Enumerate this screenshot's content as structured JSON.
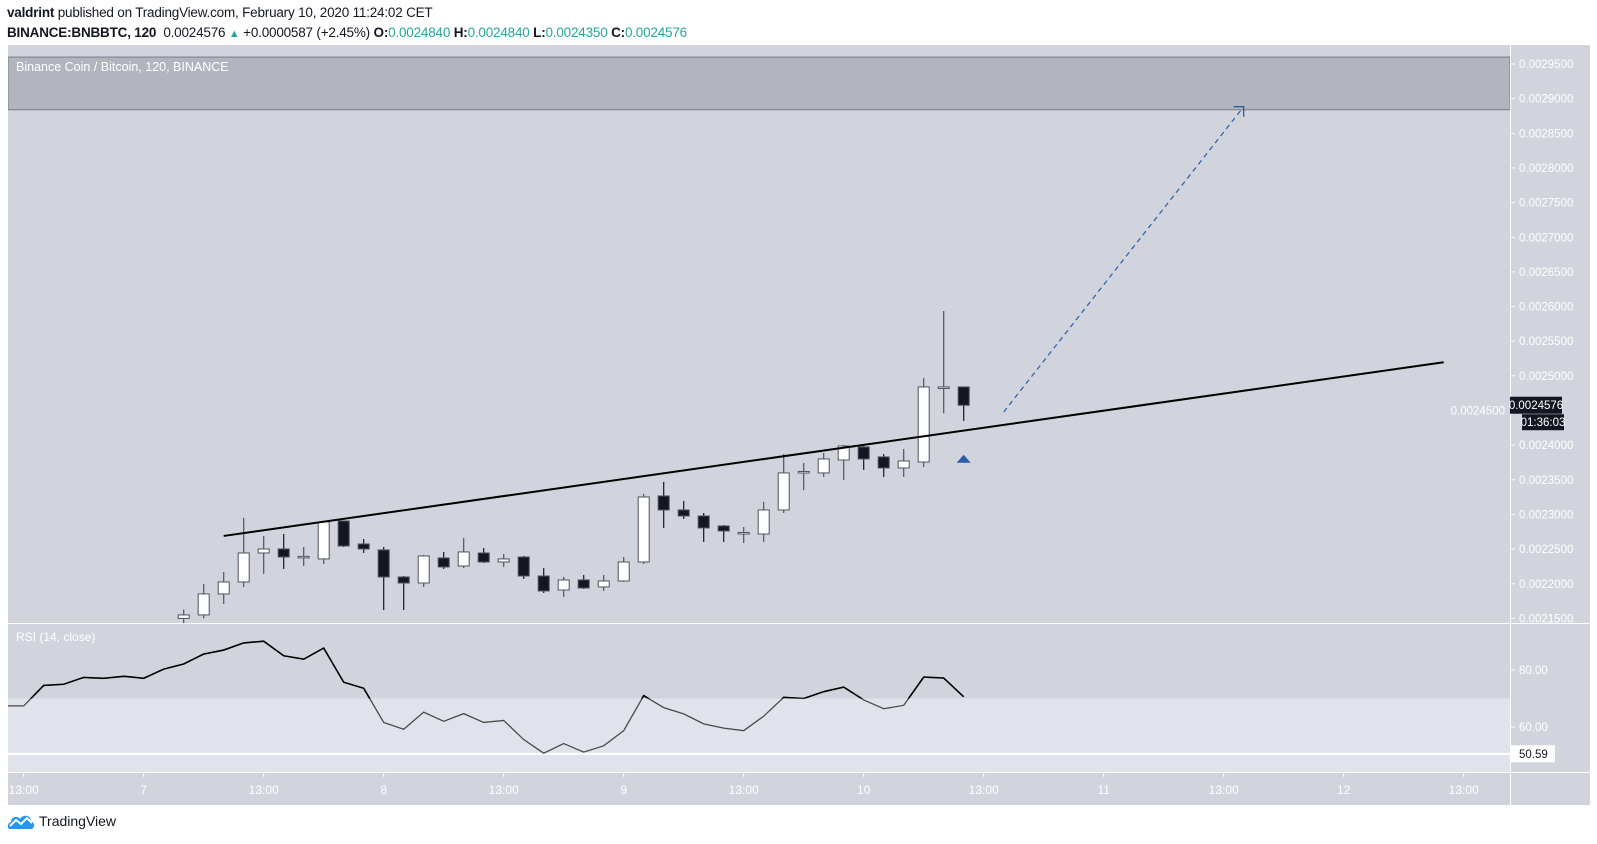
{
  "header": {
    "author": "valdrint",
    "published_text": "published on TradingView.com, February 10, 2020 11:24:02 CET",
    "symbol": "BINANCE:BNBBTC, 120",
    "last_price": "0.0024576",
    "change": "+0.0000587 (+2.45%)",
    "open_label": "O:",
    "open": "0.0024840",
    "high_label": "H:",
    "high": "0.0024840",
    "low_label": "L:",
    "low": "0.0024350",
    "close_label": "C:",
    "close": "0.0024576"
  },
  "colors": {
    "pane_bg": "#d1d4dc",
    "rsi_band": "#e0e3eb",
    "resistance_box": "#b2b5be",
    "up_candle": "#ffffff",
    "down_candle": "#131722",
    "candle_border": "#50535e",
    "value_teal": "#26a69a",
    "arrow_blue": "#2a5ca8",
    "axis_text": "#ffffff"
  },
  "chart_data": [
    {
      "type": "candlestick",
      "title": "Binance Coin / Bitcoin, 120, BINANCE",
      "ylim": [
        0.00215,
        0.00297
      ],
      "y_ticks": [
        "0.0029500",
        "0.0029000",
        "0.0028500",
        "0.0028000",
        "0.0027500",
        "0.0027000",
        "0.0026500",
        "0.0026000",
        "0.0025500",
        "0.0025000",
        "0.0024500",
        "0.0024000",
        "0.0023500",
        "0.0023000",
        "0.0022500",
        "0.0022000",
        "0.0021500"
      ],
      "x_ticks": [
        {
          "label": "13:00",
          "t": "2020-02-06 12:00"
        },
        {
          "label": "7",
          "t": "2020-02-07 00:00"
        },
        {
          "label": "13:00",
          "t": "2020-02-07 12:00"
        },
        {
          "label": "8",
          "t": "2020-02-08 00:00"
        },
        {
          "label": "13:00",
          "t": "2020-02-08 12:00"
        },
        {
          "label": "9",
          "t": "2020-02-09 00:00"
        },
        {
          "label": "13:00",
          "t": "2020-02-09 12:00"
        },
        {
          "label": "10",
          "t": "2020-02-10 00:00"
        },
        {
          "label": "13:00",
          "t": "2020-02-10 12:00"
        },
        {
          "label": "11",
          "t": "2020-02-11 00:00"
        },
        {
          "label": "13:00",
          "t": "2020-02-11 12:00"
        },
        {
          "label": "12",
          "t": "2020-02-12 00:00"
        },
        {
          "label": "13:00",
          "t": "2020-02-12 12:00"
        }
      ],
      "candle_fields": [
        "time",
        "open",
        "high",
        "low",
        "close"
      ],
      "candles": [
        [
          "2020-02-07 04:00",
          0.00215,
          0.002163,
          0.00214,
          0.002155
        ],
        [
          "2020-02-07 06:00",
          0.002155,
          0.0021997,
          0.00215,
          0.0021853
        ],
        [
          "2020-02-07 08:00",
          0.0021853,
          0.002217,
          0.0021708,
          0.0022026
        ],
        [
          "2020-02-07 10:00",
          0.0022026,
          0.0022949,
          0.0021954,
          0.0022444
        ],
        [
          "2020-02-07 12:00",
          0.0022444,
          0.002269,
          0.0022141,
          0.0022502
        ],
        [
          "2020-02-07 14:00",
          0.0022502,
          0.0022718,
          0.0022213,
          0.0022386
        ],
        [
          "2020-02-07 16:00",
          0.0022386,
          0.0022531,
          0.0022256,
          0.0022395
        ],
        [
          "2020-02-07 18:00",
          0.0022358,
          0.0022906,
          0.0022285,
          0.0022892
        ],
        [
          "2020-02-07 20:00",
          0.0022906,
          0.002291,
          0.002253,
          0.0022545
        ],
        [
          "2020-02-07 22:00",
          0.0022574,
          0.0022646,
          0.0022444,
          0.0022502
        ],
        [
          "2020-02-08 00:00",
          0.0022488,
          0.0022531,
          0.0021621,
          0.0022098
        ],
        [
          "2020-02-08 02:00",
          0.0022098,
          0.0022112,
          0.0021621,
          0.0022011
        ],
        [
          "2020-02-08 04:00",
          0.0022011,
          0.0022415,
          0.0021954,
          0.0022401
        ],
        [
          "2020-02-08 06:00",
          0.0022372,
          0.0022459,
          0.0022213,
          0.0022242
        ],
        [
          "2020-02-08 08:00",
          0.0022256,
          0.0022661,
          0.0022227,
          0.0022459
        ],
        [
          "2020-02-08 10:00",
          0.0022444,
          0.0022516,
          0.00223,
          0.0022314
        ],
        [
          "2020-02-08 12:00",
          0.0022314,
          0.002243,
          0.0022242,
          0.0022358
        ],
        [
          "2020-02-08 14:00",
          0.0022386,
          0.0022401,
          0.0022069,
          0.0022112
        ],
        [
          "2020-02-08 16:00",
          0.0022112,
          0.0022227,
          0.0021867,
          0.0021896
        ],
        [
          "2020-02-08 18:00",
          0.002191,
          0.0022098,
          0.0021809,
          0.0022055
        ],
        [
          "2020-02-08 20:00",
          0.0022055,
          0.0022127,
          0.0021925,
          0.0021939
        ],
        [
          "2020-02-08 22:00",
          0.0021954,
          0.0022127,
          0.0021896,
          0.002204
        ],
        [
          "2020-02-09 00:00",
          0.002204,
          0.0022386,
          0.0022026,
          0.0022314
        ],
        [
          "2020-02-09 02:00",
          0.0022314,
          0.0023296,
          0.0022285,
          0.0023252
        ],
        [
          "2020-02-09 04:00",
          0.0023267,
          0.0023469,
          0.0022805,
          0.0023065
        ],
        [
          "2020-02-09 06:00",
          0.0023065,
          0.0023195,
          0.0022935,
          0.0022978
        ],
        [
          "2020-02-09 08:00",
          0.0022978,
          0.0023021,
          0.0022603,
          0.0022805
        ],
        [
          "2020-02-09 10:00",
          0.0022834,
          0.0022848,
          0.0022603,
          0.0022762
        ],
        [
          "2020-02-09 12:00",
          0.0022733,
          0.0022819,
          0.0022588,
          0.002274
        ],
        [
          "2020-02-09 14:00",
          0.0022718,
          0.002318,
          0.0022603,
          0.0023065
        ],
        [
          "2020-02-09 16:00",
          0.0023065,
          0.0023873,
          0.0023021,
          0.0023599
        ],
        [
          "2020-02-09 18:00",
          0.0023613,
          0.0023743,
          0.0023353,
          0.002362
        ],
        [
          "2020-02-09 20:00",
          0.0023599,
          0.0023887,
          0.0023541,
          0.0023801
        ],
        [
          "2020-02-09 22:00",
          0.0023786,
          0.0024003,
          0.0023497,
          0.0023988
        ],
        [
          "2020-02-10 00:00",
          0.0023974,
          0.0023988,
          0.0023642,
          0.0023801
        ],
        [
          "2020-02-10 02:00",
          0.002383,
          0.0023873,
          0.0023541,
          0.0023671
        ],
        [
          "2020-02-10 04:00",
          0.0023671,
          0.0023945,
          0.0023541,
          0.0023772
        ],
        [
          "2020-02-10 06:00",
          0.0023757,
          0.002497,
          0.0023685,
          0.002484
        ],
        [
          "2020-02-10 08:00",
          0.002483,
          0.0025936,
          0.002446,
          0.002484
        ],
        [
          "2020-02-10 10:00",
          0.002484,
          0.002484,
          0.002435,
          0.0024576
        ]
      ],
      "last_price_label": "0.0024576",
      "countdown_label": "01:36:03",
      "resistance_zone": {
        "low": 0.002884,
        "high": 0.00296
      },
      "trendline": {
        "start": {
          "t": "2020-02-07 08:00",
          "price": 0.002269
        },
        "end": {
          "t": "2020-02-12 10:00",
          "price": 0.0025196
        }
      },
      "projection_arrow": {
        "style": "dashed",
        "start": {
          "t": "2020-02-10 14:00",
          "price": 0.0024479
        },
        "end": {
          "t": "2020-02-11 14:00",
          "price": 0.0028884
        }
      },
      "marker": {
        "icon": "arrow-up-icon",
        "t": "2020-02-10 10:00",
        "price": 0.0023803
      }
    },
    {
      "type": "line",
      "title": "RSI (14, close)",
      "y_ticks": [
        "80.00",
        "60.00"
      ],
      "band": [
        30,
        70
      ],
      "horizontal_line": {
        "value": 50.59,
        "label": "50.59"
      },
      "points": [
        [
          "2020-02-06 10:00",
          67.4
        ],
        [
          "2020-02-06 12:00",
          67.4
        ],
        [
          "2020-02-06 14:00",
          74.6
        ],
        [
          "2020-02-06 16:00",
          75.0
        ],
        [
          "2020-02-06 18:00",
          77.4
        ],
        [
          "2020-02-06 20:00",
          77.1
        ],
        [
          "2020-02-06 22:00",
          77.8
        ],
        [
          "2020-02-07 00:00",
          77.1
        ],
        [
          "2020-02-07 02:00",
          80.3
        ],
        [
          "2020-02-07 04:00",
          82.1
        ],
        [
          "2020-02-07 06:00",
          85.6
        ],
        [
          "2020-02-07 08:00",
          87.0
        ],
        [
          "2020-02-07 10:00",
          89.5
        ],
        [
          "2020-02-07 12:00",
          90.1
        ],
        [
          "2020-02-07 14:00",
          85.0
        ],
        [
          "2020-02-07 16:00",
          83.8
        ],
        [
          "2020-02-07 18:00",
          87.7
        ],
        [
          "2020-02-07 20:00",
          75.7
        ],
        [
          "2020-02-07 22:00",
          73.6
        ],
        [
          "2020-02-08 00:00",
          61.6
        ],
        [
          "2020-02-08 02:00",
          59.2
        ],
        [
          "2020-02-08 04:00",
          65.2
        ],
        [
          "2020-02-08 06:00",
          62.0
        ],
        [
          "2020-02-08 08:00",
          64.7
        ],
        [
          "2020-02-08 10:00",
          61.6
        ],
        [
          "2020-02-08 12:00",
          62.3
        ],
        [
          "2020-02-08 14:00",
          55.6
        ],
        [
          "2020-02-08 16:00",
          50.8
        ],
        [
          "2020-02-08 18:00",
          54.2
        ],
        [
          "2020-02-08 20:00",
          51.2
        ],
        [
          "2020-02-08 22:00",
          53.4
        ],
        [
          "2020-02-09 00:00",
          58.7
        ],
        [
          "2020-02-09 02:00",
          71.0
        ],
        [
          "2020-02-09 04:00",
          66.8
        ],
        [
          "2020-02-09 06:00",
          64.6
        ],
        [
          "2020-02-09 08:00",
          61.1
        ],
        [
          "2020-02-09 10:00",
          59.6
        ],
        [
          "2020-02-09 12:00",
          58.7
        ],
        [
          "2020-02-09 14:00",
          63.8
        ],
        [
          "2020-02-09 16:00",
          70.4
        ],
        [
          "2020-02-09 18:00",
          70.0
        ],
        [
          "2020-02-09 20:00",
          72.4
        ],
        [
          "2020-02-09 22:00",
          74.0
        ],
        [
          "2020-02-10 00:00",
          69.5
        ],
        [
          "2020-02-10 02:00",
          66.4
        ],
        [
          "2020-02-10 04:00",
          67.6
        ],
        [
          "2020-02-10 06:00",
          77.5
        ],
        [
          "2020-02-10 08:00",
          77.2
        ],
        [
          "2020-02-10 10:00",
          70.6
        ]
      ]
    }
  ],
  "footer": {
    "logo_text": "TradingView"
  }
}
